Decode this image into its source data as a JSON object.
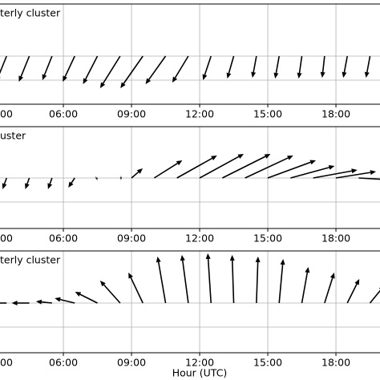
{
  "chart_data": [
    {
      "type": "quiver",
      "title": "terly cluster",
      "color": "#000000",
      "grid": true,
      "xlim": [
        3.21,
        19.94
      ],
      "xticks": [
        {
          "value": 3,
          "label": "00"
        },
        {
          "value": 6,
          "label": "06:00"
        },
        {
          "value": 9,
          "label": "09:00"
        },
        {
          "value": 12,
          "label": "12:00"
        },
        {
          "value": 15,
          "label": "15:00"
        },
        {
          "value": 18,
          "label": "18:00"
        }
      ],
      "x": [
        3.5,
        4.5,
        5.5,
        6.5,
        7.5,
        8.5,
        9.5,
        10.5,
        11.5,
        12.5,
        13.5,
        14.5,
        15.5,
        16.5,
        17.5,
        18.5,
        19.5
      ],
      "u": [
        -6.5,
        -6.5,
        -6,
        -7.5,
        -9,
        -12.5,
        -14,
        -12.5,
        -10,
        -5,
        -4,
        -2.5,
        -2.5,
        -2,
        -1.5,
        -2.5,
        -2.5
      ],
      "v": [
        -16,
        -16,
        -15,
        -16,
        -17.5,
        -20,
        -20,
        -17.5,
        -16.5,
        -15,
        -14,
        -13.5,
        -14,
        -14,
        -13.5,
        -13.5,
        -13.5
      ]
    },
    {
      "type": "quiver",
      "title": "uster",
      "color": "#000000",
      "grid": true,
      "xlim": [
        3.21,
        19.94
      ],
      "xticks": [
        {
          "value": 3,
          "label": "00"
        },
        {
          "value": 6,
          "label": "06:00"
        },
        {
          "value": 9,
          "label": "09:00"
        },
        {
          "value": 12,
          "label": "12:00"
        },
        {
          "value": 15,
          "label": "15:00"
        },
        {
          "value": 18,
          "label": "18:00"
        }
      ],
      "x": [
        3.5,
        4.5,
        5.5,
        6.5,
        7.5,
        8.5,
        9,
        10,
        11,
        12,
        13,
        14,
        15,
        16,
        17,
        18,
        19
      ],
      "u": [
        -2.5,
        -2.5,
        -2.5,
        -4,
        -1,
        1,
        7,
        17.5,
        25,
        27.5,
        30,
        30,
        30,
        27.5,
        27.5,
        25,
        17.5
      ],
      "v": [
        -7,
        -7,
        -7,
        -6,
        -0.5,
        0,
        6,
        11,
        14,
        15,
        15,
        14,
        11,
        7.5,
        5,
        4,
        -1
      ]
    },
    {
      "type": "quiver",
      "title": "terly cluster",
      "color": "#000000",
      "grid": true,
      "xlabel": "Hour (UTC)",
      "xlim": [
        3.21,
        19.94
      ],
      "xticks": [
        {
          "value": 3,
          "label": "00"
        },
        {
          "value": 6,
          "label": "06:00"
        },
        {
          "value": 9,
          "label": "09:00"
        },
        {
          "value": 12,
          "label": "12:00"
        },
        {
          "value": 15,
          "label": "15:00"
        },
        {
          "value": 18,
          "label": "18:00"
        }
      ],
      "x": [
        3.5,
        4.5,
        5.5,
        6.5,
        7.5,
        8.5,
        9.5,
        10.5,
        11.5,
        12.5,
        13.5,
        14.5,
        15.5,
        16.5,
        17.5,
        18.5,
        19.5
      ],
      "u": [
        -11,
        -11,
        -10,
        -12.5,
        -14,
        -12.5,
        -9,
        -5,
        -4,
        -2,
        -1,
        1,
        2.5,
        4,
        6,
        7.5,
        9
      ],
      "v": [
        0,
        0,
        1,
        3,
        7,
        14,
        19,
        29,
        30,
        31,
        30,
        29,
        27.5,
        22.5,
        19,
        15,
        11
      ]
    }
  ]
}
